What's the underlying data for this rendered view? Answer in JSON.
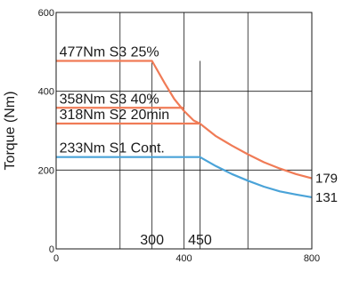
{
  "chart_data": {
    "type": "line",
    "title": "",
    "xlabel": "",
    "ylabel": "Torque (Nm)",
    "xlim": [
      0,
      800
    ],
    "ylim": [
      0,
      600
    ],
    "x_ticks": [
      "0",
      "400",
      "800"
    ],
    "y_ticks": [
      "0",
      "200",
      "400",
      "600"
    ],
    "grid": true,
    "series": [
      {
        "color": "#f07b56",
        "points": [
          {
            "x": 0,
            "y": 477
          },
          {
            "x": 300,
            "y": 477
          },
          {
            "x": 340,
            "y": 420
          },
          {
            "x": 370,
            "y": 380
          },
          {
            "x": 400,
            "y": 350
          },
          {
            "x": 430,
            "y": 326
          },
          {
            "x": 450,
            "y": 318
          },
          {
            "x": 500,
            "y": 286
          },
          {
            "x": 550,
            "y": 262
          },
          {
            "x": 600,
            "y": 240
          },
          {
            "x": 650,
            "y": 220
          },
          {
            "x": 700,
            "y": 204
          },
          {
            "x": 750,
            "y": 190
          },
          {
            "x": 800,
            "y": 179
          }
        ]
      },
      {
        "color": "#4aa3d8",
        "points": [
          {
            "x": 0,
            "y": 233
          },
          {
            "x": 450,
            "y": 233
          },
          {
            "x": 500,
            "y": 210
          },
          {
            "x": 550,
            "y": 190
          },
          {
            "x": 600,
            "y": 173
          },
          {
            "x": 650,
            "y": 158
          },
          {
            "x": 700,
            "y": 146
          },
          {
            "x": 750,
            "y": 138
          },
          {
            "x": 800,
            "y": 131
          }
        ]
      }
    ],
    "reference_lines": [
      {
        "y": 358,
        "x_end": 400,
        "color": "#f07b56"
      },
      {
        "y": 318,
        "x_end": 450,
        "color": "#f07b56"
      }
    ],
    "vertical_markers": [
      {
        "x": 300,
        "label": "300"
      },
      {
        "x": 450,
        "label": "450"
      }
    ],
    "annotations": [
      {
        "text": "477Nm S3 25%",
        "x": 10,
        "y": 477
      },
      {
        "text": "358Nm S3 40%",
        "x": 10,
        "y": 358
      },
      {
        "text": "318Nm S2 20min",
        "x": 10,
        "y": 318
      },
      {
        "text": "233Nm S1 Cont.",
        "x": 10,
        "y": 233
      }
    ],
    "end_labels": [
      {
        "text": "179",
        "y": 179
      },
      {
        "text": "131",
        "y": 131
      }
    ]
  }
}
